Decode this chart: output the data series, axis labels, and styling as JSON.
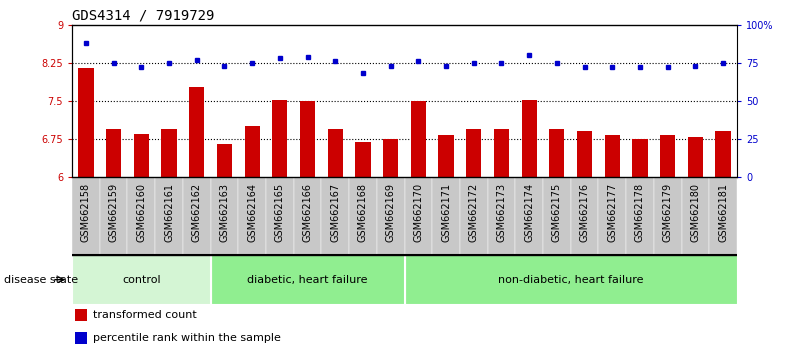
{
  "title": "GDS4314 / 7919729",
  "samples": [
    "GSM662158",
    "GSM662159",
    "GSM662160",
    "GSM662161",
    "GSM662162",
    "GSM662163",
    "GSM662164",
    "GSM662165",
    "GSM662166",
    "GSM662167",
    "GSM662168",
    "GSM662169",
    "GSM662170",
    "GSM662171",
    "GSM662172",
    "GSM662173",
    "GSM662174",
    "GSM662175",
    "GSM662176",
    "GSM662177",
    "GSM662178",
    "GSM662179",
    "GSM662180",
    "GSM662181"
  ],
  "bar_values": [
    8.15,
    6.95,
    6.85,
    6.95,
    7.78,
    6.65,
    7.0,
    7.52,
    7.5,
    6.95,
    6.68,
    6.75,
    7.5,
    6.82,
    6.95,
    6.95,
    7.52,
    6.95,
    6.9,
    6.82,
    6.75,
    6.82,
    6.78,
    6.9
  ],
  "percentile_values": [
    88,
    75,
    72,
    75,
    77,
    73,
    75,
    78,
    79,
    76,
    68,
    73,
    76,
    73,
    75,
    75,
    80,
    75,
    72,
    72,
    72,
    72,
    73,
    75
  ],
  "bar_color": "#cc0000",
  "percentile_color": "#0000cc",
  "ylim_left": [
    6,
    9
  ],
  "ylim_right": [
    0,
    100
  ],
  "yticks_left": [
    6,
    6.75,
    7.5,
    8.25,
    9
  ],
  "yticks_right": [
    0,
    25,
    50,
    75,
    100
  ],
  "ytick_labels_left": [
    "6",
    "6.75",
    "7.5",
    "8.25",
    "9"
  ],
  "ytick_labels_right": [
    "0",
    "25",
    "50",
    "75",
    "100%"
  ],
  "hlines": [
    6.75,
    7.5,
    8.25
  ],
  "group_ranges": [
    [
      0,
      4,
      "control"
    ],
    [
      5,
      11,
      "diabetic, heart failure"
    ],
    [
      12,
      23,
      "non-diabetic, heart failure"
    ]
  ],
  "group_colors": [
    "#d4f5d4",
    "#90ee90",
    "#90ee90"
  ],
  "group_dividers": [
    4.5,
    11.5
  ],
  "disease_state_label": "disease state",
  "legend_items": [
    {
      "label": "transformed count",
      "color": "#cc0000",
      "marker": "s"
    },
    {
      "label": "percentile rank within the sample",
      "color": "#0000cc",
      "marker": "s"
    }
  ],
  "plot_bg_color": "#ffffff",
  "xtick_bg_color": "#c8c8c8",
  "title_fontsize": 10,
  "tick_fontsize": 7,
  "label_fontsize": 8
}
